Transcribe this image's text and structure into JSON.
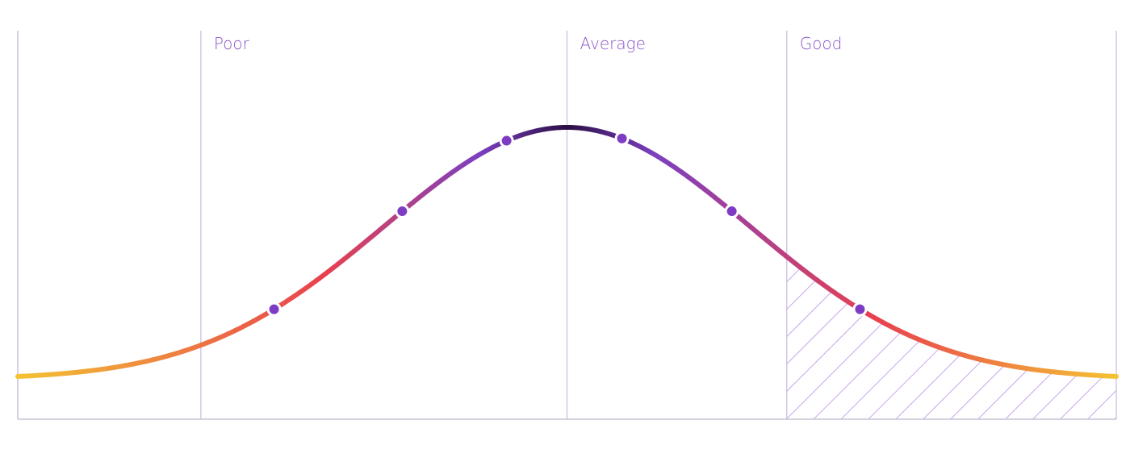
{
  "zones": [
    {
      "label": "Poor"
    },
    {
      "label": "Average"
    },
    {
      "label": "Good"
    }
  ],
  "colors": {
    "label": "#8a56c9",
    "divider": "#d2c8e6",
    "axis": "#c9c3d6",
    "hatch": "#c7a6ea",
    "marker_fill": "#7d3cc2",
    "marker_stroke": "#ffffff",
    "curve_tail": "#f4c232",
    "curve_mid_low": "#e8404f",
    "curve_mid": "#7d3fc0",
    "curve_peak": "#2b0f45"
  },
  "chart_data": {
    "type": "line",
    "curve": "normal-distribution",
    "x_range": [
      -3,
      3
    ],
    "zone_boundaries": [
      -2,
      0,
      1.2
    ],
    "highlighted_zone": "Good",
    "marked_points": [
      -1.6,
      -0.9,
      -0.33,
      0.3,
      0.9,
      1.6
    ]
  }
}
